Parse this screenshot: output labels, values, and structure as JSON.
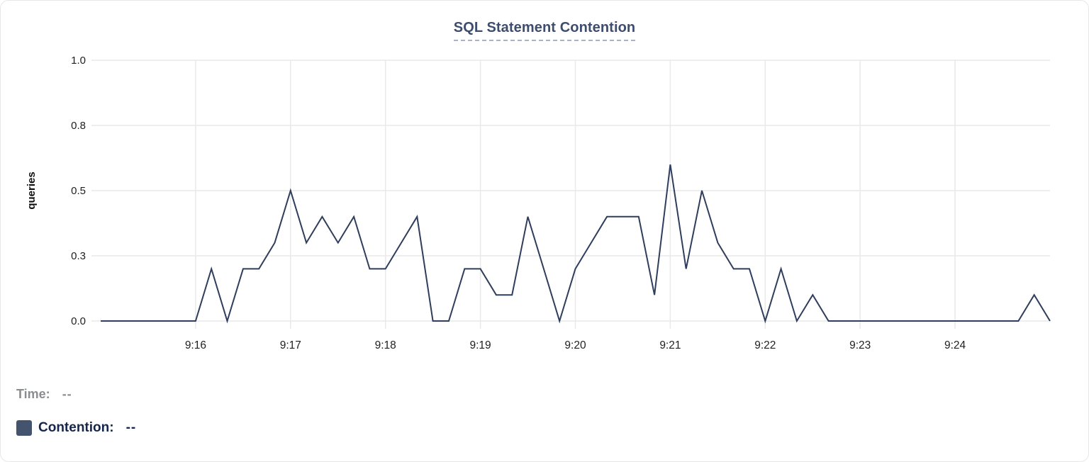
{
  "legend": {
    "time_label": "Time:",
    "time_value": "--",
    "contention_label": "Contention:",
    "contention_value": "--",
    "contention_color": "#44536e"
  },
  "chart_data": {
    "type": "line",
    "title": "SQL Statement Contention",
    "xlabel": "",
    "ylabel": "queries",
    "ylim": [
      0,
      1
    ],
    "grid": true,
    "legend_position": "bottom-left",
    "line_color": "#2f3e5c",
    "grid_color": "#e9e9e9",
    "yticks": [
      {
        "value": 0.0,
        "label": "0.0"
      },
      {
        "value": 0.25,
        "label": "0.3"
      },
      {
        "value": 0.5,
        "label": "0.5"
      },
      {
        "value": 0.75,
        "label": "0.8"
      },
      {
        "value": 1.0,
        "label": "1.0"
      }
    ],
    "xticks": [
      {
        "index": 6,
        "label": "9:16"
      },
      {
        "index": 12,
        "label": "9:17"
      },
      {
        "index": 18,
        "label": "9:18"
      },
      {
        "index": 24,
        "label": "9:19"
      },
      {
        "index": 30,
        "label": "9:20"
      },
      {
        "index": 36,
        "label": "9:21"
      },
      {
        "index": 42,
        "label": "9:22"
      },
      {
        "index": 48,
        "label": "9:23"
      },
      {
        "index": 54,
        "label": "9:24"
      }
    ],
    "x": [
      "9:15:00",
      "9:15:10",
      "9:15:20",
      "9:15:30",
      "9:15:40",
      "9:15:50",
      "9:16:00",
      "9:16:10",
      "9:16:20",
      "9:16:30",
      "9:16:40",
      "9:16:50",
      "9:17:00",
      "9:17:10",
      "9:17:20",
      "9:17:30",
      "9:17:40",
      "9:17:50",
      "9:18:00",
      "9:18:10",
      "9:18:20",
      "9:18:30",
      "9:18:40",
      "9:18:50",
      "9:19:00",
      "9:19:10",
      "9:19:20",
      "9:19:30",
      "9:19:40",
      "9:19:50",
      "9:20:00",
      "9:20:10",
      "9:20:20",
      "9:20:30",
      "9:20:40",
      "9:20:50",
      "9:21:00",
      "9:21:10",
      "9:21:20",
      "9:21:30",
      "9:21:40",
      "9:21:50",
      "9:22:00",
      "9:22:10",
      "9:22:20",
      "9:22:30",
      "9:22:40",
      "9:22:50",
      "9:23:00",
      "9:23:10",
      "9:23:20",
      "9:23:30",
      "9:23:40",
      "9:23:50",
      "9:24:00",
      "9:24:10",
      "9:24:20",
      "9:24:30",
      "9:24:40",
      "9:24:50",
      "9:25:00"
    ],
    "series": [
      {
        "name": "Contention",
        "color": "#2f3e5c",
        "values": [
          0,
          0,
          0,
          0,
          0,
          0,
          0,
          0.2,
          0,
          0.2,
          0.2,
          0.3,
          0.5,
          0.3,
          0.4,
          0.3,
          0.4,
          0.2,
          0.2,
          0.3,
          0.4,
          0,
          0,
          0.2,
          0.2,
          0.1,
          0.1,
          0.4,
          0.2,
          0,
          0.2,
          0.3,
          0.4,
          0.4,
          0.4,
          0.1,
          0.6,
          0.2,
          0.5,
          0.3,
          0.2,
          0.2,
          0,
          0.2,
          0,
          0.1,
          0,
          0,
          0,
          0,
          0,
          0,
          0,
          0,
          0,
          0,
          0,
          0,
          0,
          0.1,
          0
        ]
      }
    ]
  }
}
